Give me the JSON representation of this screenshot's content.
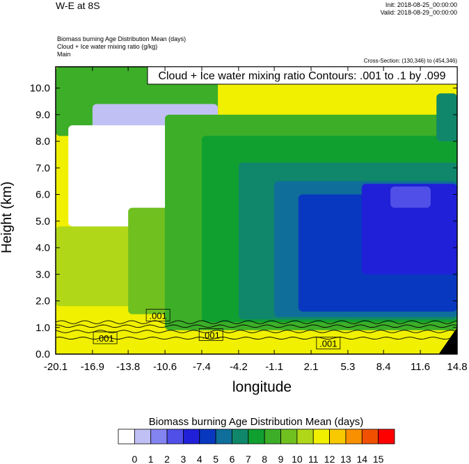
{
  "header": {
    "title": "W-E at 8S",
    "init": "Init: 2018-08-25_00:00:00",
    "valid": "Valid: 2018-08-29_00:00:00",
    "desc_lines": [
      "Biomass burning Age Distribution Mean   (days)",
      "Cloud + Ice water mixing ratio   (g/kg)",
      "Main"
    ],
    "cross_section": "Cross-Section: (130,346) to (454,346)"
  },
  "chart_data": {
    "type": "heatmap",
    "title": "Cloud + Ice water mixing ratio Contours: .001 to .1 by .099",
    "xlabel": "longitude",
    "ylabel": "Height (km)",
    "x_ticks": [
      "-20.1",
      "-16.9",
      "-13.8",
      "-10.6",
      "-7.4",
      "-4.2",
      "-1.1",
      "2.1",
      "5.3",
      "8.4",
      "11.6",
      "14.8"
    ],
    "y_ticks": [
      "0.0",
      "1.0",
      "2.0",
      "3.0",
      "4.0",
      "5.0",
      "6.0",
      "7.0",
      "8.0",
      "9.0",
      "10.0"
    ],
    "x_range": [
      -20.1,
      14.8
    ],
    "y_range": [
      0,
      10.8
    ],
    "contour_labels": [
      {
        "text": ".001",
        "lon": -11.2,
        "h": 1.45
      },
      {
        "text": ".001",
        "lon": -15.8,
        "h": 0.6
      },
      {
        "text": ".001",
        "lon": -6.6,
        "h": 0.72
      },
      {
        "text": ".001",
        "lon": 3.6,
        "h": 0.4
      }
    ],
    "colorbar": {
      "title": "Biomass burning Age Distribution Mean  (days)",
      "levels": [
        "0",
        "1",
        "2",
        "3",
        "4",
        "5",
        "6",
        "7",
        "8",
        "9",
        "10",
        "11",
        "12",
        "13",
        "14",
        "15"
      ],
      "colors": [
        "#ffffff",
        "#c0c0f5",
        "#8484f0",
        "#5050e8",
        "#2020d8",
        "#0838c0",
        "#0f6e9a",
        "#10876a",
        "#10a030",
        "#3cae28",
        "#70c020",
        "#b0d818",
        "#f0f000",
        "#f8c800",
        "#f89000",
        "#f05000",
        "#ff0000"
      ]
    },
    "field": {
      "description": "Age values (days) on a lon × height grid",
      "base_layer_age": 12,
      "regions": [
        {
          "age": 9,
          "lon": [
            -20.1,
            -6.0
          ],
          "h": [
            8.2,
            10.8
          ]
        },
        {
          "age": 1,
          "lon": [
            -16.9,
            -6.0
          ],
          "h": [
            8.0,
            9.4
          ]
        },
        {
          "age": 0,
          "lon": [
            -19.0,
            -1.5
          ],
          "h": [
            4.8,
            8.6
          ]
        },
        {
          "age": 0,
          "lon": [
            -14.5,
            -9.5
          ],
          "h": [
            3.7,
            5.0
          ]
        },
        {
          "age": 11,
          "lon": [
            -20.1,
            -10.6
          ],
          "h": [
            1.8,
            4.8
          ]
        },
        {
          "age": 10,
          "lon": [
            -13.8,
            -1.1
          ],
          "h": [
            1.5,
            5.5
          ]
        },
        {
          "age": 9,
          "lon": [
            -10.6,
            14.8
          ],
          "h": [
            0.9,
            9.0
          ]
        },
        {
          "age": 8,
          "lon": [
            -7.4,
            14.8
          ],
          "h": [
            1.2,
            8.2
          ]
        },
        {
          "age": 7,
          "lon": [
            -4.2,
            14.8
          ],
          "h": [
            1.3,
            7.2
          ]
        },
        {
          "age": 6,
          "lon": [
            -1.1,
            14.8
          ],
          "h": [
            1.4,
            6.5
          ]
        },
        {
          "age": 5,
          "lon": [
            1.0,
            14.8
          ],
          "h": [
            1.6,
            6.0
          ]
        },
        {
          "age": 4,
          "lon": [
            6.5,
            14.8
          ],
          "h": [
            3.0,
            6.4
          ]
        },
        {
          "age": 3,
          "lon": [
            9.0,
            12.5
          ],
          "h": [
            5.5,
            6.3
          ]
        },
        {
          "age": 7,
          "lon": [
            13.0,
            14.8
          ],
          "h": [
            8.0,
            9.8
          ]
        }
      ]
    }
  }
}
